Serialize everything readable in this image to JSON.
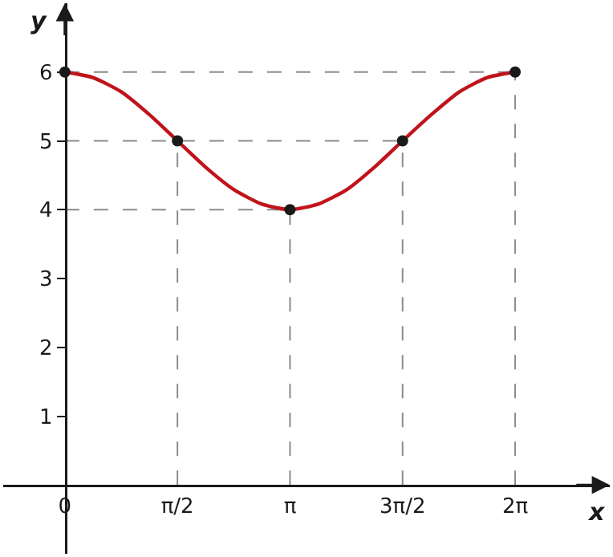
{
  "chart_data": {
    "type": "line",
    "xlabel": "x",
    "ylabel": "y",
    "xlim": [
      -0.86,
      7.6
    ],
    "ylim": [
      -1.0,
      7.0
    ],
    "xticks": [
      0,
      {
        "value": 1.57,
        "label": "π/2"
      },
      {
        "value": 3.14,
        "label": "π"
      },
      {
        "value": 4.71,
        "label": "3π/2"
      },
      {
        "value": 6.28,
        "label": "2π"
      }
    ],
    "yticks": [
      1,
      2,
      3,
      4,
      5,
      6
    ],
    "series": [
      {
        "color": "#c0141c",
        "marker": "none",
        "line_style": "solid",
        "x": [
          0,
          0.39,
          0.79,
          1.18,
          1.57,
          1.96,
          2.36,
          2.75,
          3.14,
          3.53,
          3.93,
          4.32,
          4.71,
          5.11,
          5.5,
          5.89,
          6.28
        ],
        "values": [
          6,
          5.92,
          5.71,
          5.38,
          5,
          4.62,
          4.29,
          4.08,
          4,
          4.08,
          4.29,
          4.62,
          5,
          5.38,
          5.71,
          5.92,
          6
        ]
      },
      {
        "type": "scatter",
        "color": "#1a1a1a",
        "marker": "circle",
        "x": [
          0,
          1.57,
          3.14,
          4.71,
          6.28
        ],
        "values": [
          6,
          5,
          4,
          5,
          6
        ]
      }
    ],
    "ref_lines": [
      {
        "axis": "y",
        "value": 6,
        "color": "#8c8c8c",
        "line_style": "dashed"
      },
      {
        "axis": "y",
        "value": 5,
        "color": "#8c8c8c",
        "line_style": "dashed"
      },
      {
        "axis": "y",
        "value": 4,
        "color": "#8c8c8c",
        "line_style": "dashed"
      },
      {
        "axis": "x",
        "value": 1.57,
        "color": "#8c8c8c",
        "line_style": "dashed"
      },
      {
        "axis": "x",
        "value": 3.14,
        "color": "#8c8c8c",
        "line_style": "dashed"
      },
      {
        "axis": "x",
        "value": 4.71,
        "color": "#8c8c8c",
        "line_style": "dashed"
      },
      {
        "axis": "x",
        "value": 6.28,
        "color": "#8c8c8c",
        "line_style": "dashed"
      }
    ]
  }
}
